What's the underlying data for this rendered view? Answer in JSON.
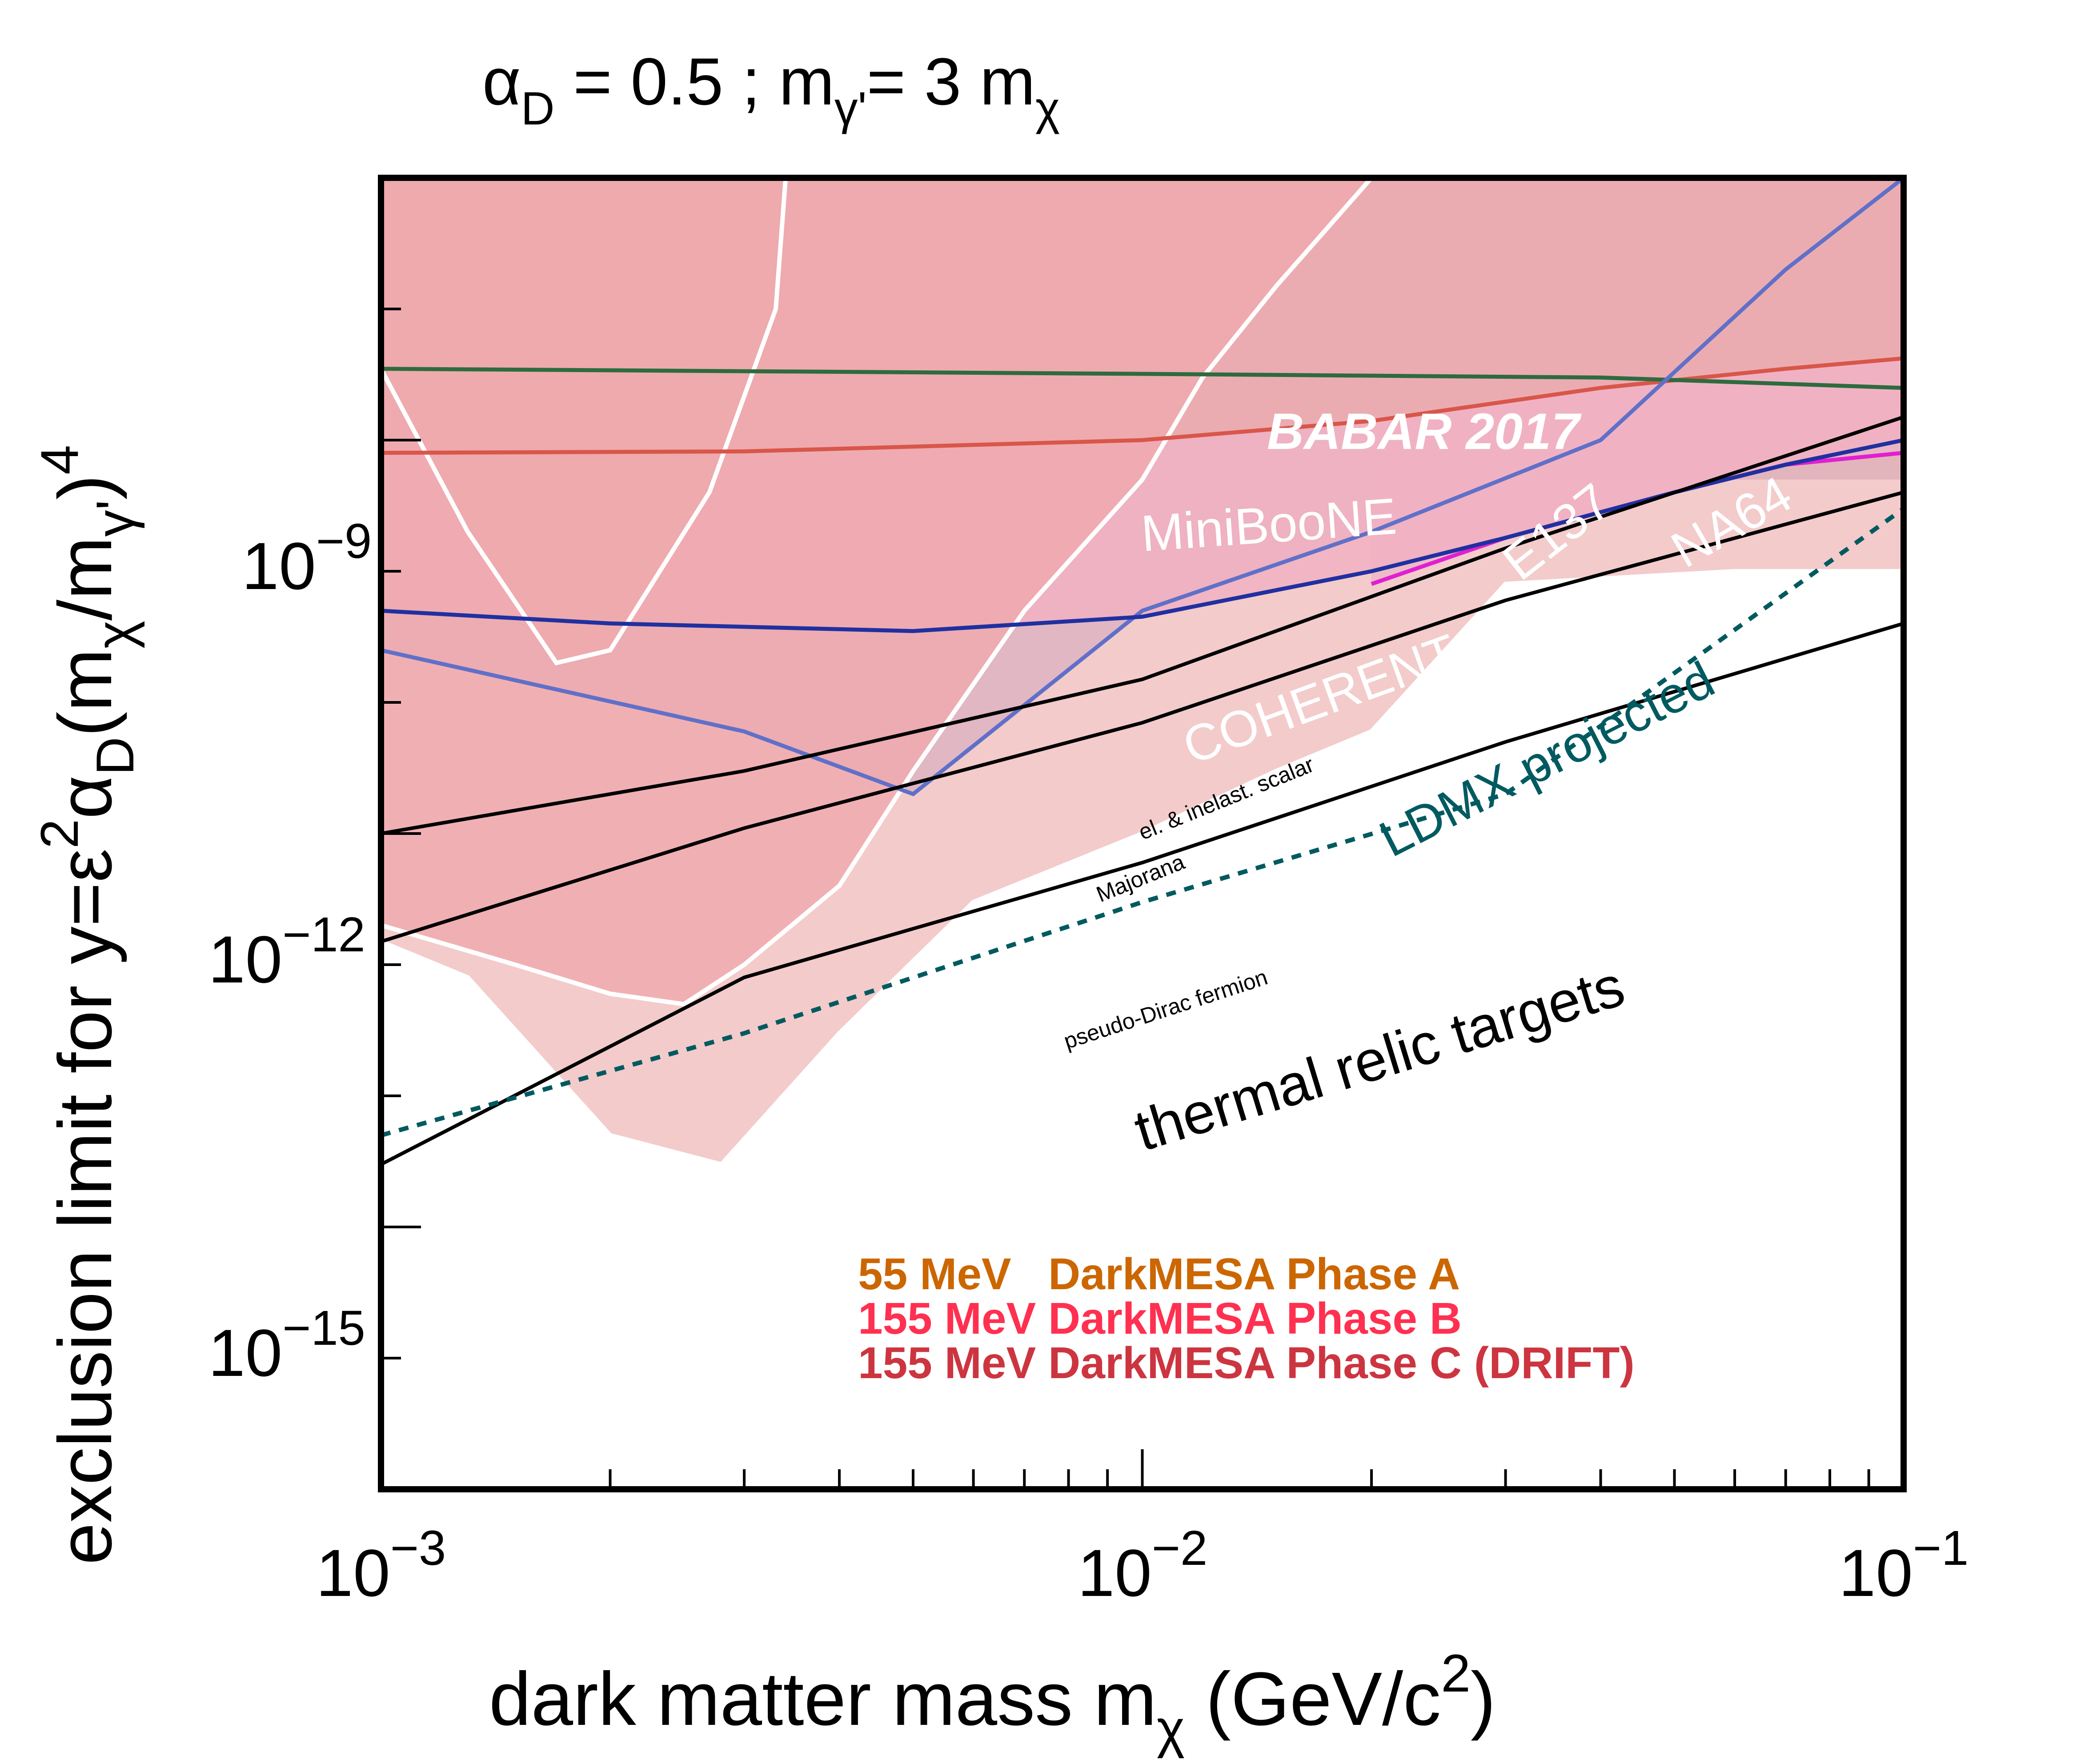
{
  "chart_data": {
    "type": "area",
    "title": {
      "alpha": "α",
      "alpha_sub": "D",
      "part1": " = 0.5 ; m",
      "m_sub": "γ'",
      "part2": "= 3 m",
      "chi_sub": "χ"
    },
    "xlabel": {
      "text": "dark matter mass m",
      "sub": "χ",
      "unit": " (GeV/c",
      "unit_sup": "2",
      "close": ")"
    },
    "ylabel": {
      "text": "exclusion limit for y=ε",
      "sup1": "2",
      "alpha": "α",
      "sub1": "D",
      "mid": "(m",
      "sub2": "χ",
      "slash": "/m",
      "sub3": "γ'",
      "close": ")",
      "sup2": "4"
    },
    "x_scale": "log",
    "y_scale": "log",
    "xlim": [
      0.001,
      0.1
    ],
    "ylim": [
      1e-17,
      1e-07
    ],
    "x_ticks": [
      {
        "value": 0.001,
        "base": "10",
        "exp": "−3"
      },
      {
        "value": 0.01,
        "base": "10",
        "exp": "−2"
      },
      {
        "value": 0.1,
        "base": "10",
        "exp": "−1"
      }
    ],
    "y_ticks": [
      {
        "value": 1e-09,
        "base": "10",
        "exp": "−9"
      },
      {
        "value": 1e-12,
        "base": "10",
        "exp": "−12"
      },
      {
        "value": 1e-15,
        "base": "10",
        "exp": "−15"
      }
    ],
    "regions": [
      {
        "name": "BaBar 2017",
        "color": "#8C6E96",
        "top": 1e-07,
        "points": [
          [
            0.033,
            1e-07
          ],
          [
            0.1,
            1e-07
          ],
          [
            0.1,
            5e-10
          ],
          [
            0.033,
            5e-10
          ]
        ]
      },
      {
        "name": "E137",
        "color": "#7D78C8",
        "top": 1e-07,
        "points": [
          [
            0.001,
            2.5e-11
          ],
          [
            0.003,
            6e-12
          ],
          [
            0.005,
            2e-12
          ],
          [
            0.01,
            5e-11
          ],
          [
            0.02,
            2e-10
          ],
          [
            0.04,
            1e-09
          ],
          [
            0.07,
            2e-08
          ],
          [
            0.1,
            1e-07
          ]
        ]
      },
      {
        "name": "NA64",
        "color": "#D28CE6",
        "top": 1e-07,
        "points": [
          [
            0.02,
            8e-11
          ],
          [
            0.03,
            1.8e-10
          ],
          [
            0.05,
            4e-10
          ],
          [
            0.07,
            6.5e-10
          ],
          [
            0.1,
            8e-10
          ]
        ]
      },
      {
        "name": "COHERENT CsI",
        "color": "#F46ECC",
        "top": 1e-07,
        "points": [
          [
            0.001,
            5e-11
          ],
          [
            0.002,
            4e-11
          ],
          [
            0.005,
            3.5e-11
          ],
          [
            0.01,
            4.5e-11
          ],
          [
            0.02,
            1e-10
          ],
          [
            0.03,
            1.8e-10
          ],
          [
            0.05,
            4e-10
          ],
          [
            0.07,
            6.5e-10
          ],
          [
            0.1,
            1e-09
          ]
        ]
      },
      {
        "name": "MiniBooNE",
        "color": "#CD4C5C",
        "top": 1e-07,
        "points": [
          [
            0.001,
            8e-10
          ],
          [
            0.003,
            8.2e-10
          ],
          [
            0.01,
            1e-09
          ],
          [
            0.02,
            1.4e-09
          ],
          [
            0.04,
            2.5e-09
          ],
          [
            0.07,
            3.5e-09
          ],
          [
            0.1,
            4.2e-09
          ]
        ]
      },
      {
        "name": "DarkMESA Phase A",
        "color": "#C4503C",
        "top": 1e-07,
        "points": [
          [
            0.001,
            1e-07
          ],
          [
            0.001,
            3.5e-09
          ],
          [
            0.0013,
            2e-10
          ],
          [
            0.0017,
            2e-11
          ],
          [
            0.002,
            2.5e-11
          ],
          [
            0.0027,
            4e-10
          ],
          [
            0.0033,
            1e-08
          ],
          [
            0.0034,
            1e-07
          ]
        ]
      },
      {
        "name": "DarkMESA Phase B",
        "color": "#E8485E",
        "top": 1e-07,
        "points": [
          [
            0.001,
            2e-13
          ],
          [
            0.0015,
            1e-13
          ],
          [
            0.002,
            6e-14
          ],
          [
            0.0025,
            5e-14
          ],
          [
            0.003,
            1e-13
          ],
          [
            0.004,
            4e-13
          ],
          [
            0.005,
            3e-12
          ],
          [
            0.007,
            5e-11
          ],
          [
            0.01,
            5e-10
          ],
          [
            0.012,
            3e-09
          ],
          [
            0.015,
            1.5e-08
          ],
          [
            0.02,
            1e-07
          ]
        ]
      },
      {
        "name": "DarkMESA Phase C (DRIFT)",
        "color": "#F0C0C0",
        "top": 1e-07,
        "points": [
          [
            0.001,
            1.5e-13
          ],
          [
            0.0013,
            8e-14
          ],
          [
            0.002,
            5e-15
          ],
          [
            0.0028,
            3e-15
          ],
          [
            0.004,
            3e-14
          ],
          [
            0.006,
            3e-13
          ],
          [
            0.01,
            1e-12
          ],
          [
            0.015,
            3e-12
          ],
          [
            0.02,
            6e-12
          ],
          [
            0.03,
            8e-11
          ],
          [
            0.06,
            1e-10
          ],
          [
            0.1,
            1e-10
          ]
        ]
      }
    ],
    "boundary_lines": [
      {
        "name": "MiniBooNE",
        "color": "#D9564A",
        "points": [
          [
            0.001,
            8e-10
          ],
          [
            0.003,
            8.2e-10
          ],
          [
            0.01,
            1e-09
          ],
          [
            0.02,
            1.4e-09
          ],
          [
            0.04,
            2.5e-09
          ],
          [
            0.07,
            3.5e-09
          ],
          [
            0.1,
            4.2e-09
          ]
        ]
      },
      {
        "name": "BaBar 2017",
        "color": "#2E6B3E",
        "points": [
          [
            0.001,
            3.5e-09
          ],
          [
            0.01,
            3.2e-09
          ],
          [
            0.04,
            3e-09
          ],
          [
            0.1,
            2.5e-09
          ]
        ]
      },
      {
        "name": "E137",
        "color": "#6070C8",
        "points": [
          [
            0.001,
            2.5e-11
          ],
          [
            0.003,
            6e-12
          ],
          [
            0.005,
            2e-12
          ],
          [
            0.01,
            5e-11
          ],
          [
            0.02,
            2e-10
          ],
          [
            0.04,
            1e-09
          ],
          [
            0.07,
            2e-08
          ],
          [
            0.1,
            1e-07
          ]
        ]
      },
      {
        "name": "NA64",
        "color": "#E020D0",
        "points": [
          [
            0.02,
            8e-11
          ],
          [
            0.03,
            1.8e-10
          ],
          [
            0.05,
            4e-10
          ],
          [
            0.07,
            6.5e-10
          ],
          [
            0.1,
            8e-10
          ]
        ]
      },
      {
        "name": "COHERENT CsI",
        "color": "#2030A0",
        "points": [
          [
            0.001,
            5e-11
          ],
          [
            0.002,
            4e-11
          ],
          [
            0.005,
            3.5e-11
          ],
          [
            0.01,
            4.5e-11
          ],
          [
            0.02,
            1e-10
          ],
          [
            0.03,
            1.8e-10
          ],
          [
            0.05,
            4e-10
          ],
          [
            0.07,
            6.5e-10
          ],
          [
            0.1,
            1e-09
          ]
        ]
      }
    ],
    "thermal_targets": [
      {
        "name": "el. & inelast. scalar",
        "color": "#000000",
        "points": [
          [
            0.001,
            1e-12
          ],
          [
            0.003,
            3e-12
          ],
          [
            0.01,
            1.5e-11
          ],
          [
            0.03,
            1.5e-10
          ],
          [
            0.1,
            1.5e-09
          ]
        ]
      },
      {
        "name": "Majorana",
        "color": "#000000",
        "points": [
          [
            0.001,
            1.5e-13
          ],
          [
            0.003,
            1.1e-12
          ],
          [
            0.01,
            7e-12
          ],
          [
            0.03,
            6e-11
          ],
          [
            0.1,
            4e-10
          ]
        ]
      },
      {
        "name": "pseudo-Dirac fermion",
        "color": "#000000",
        "points": [
          [
            0.001,
            3e-15
          ],
          [
            0.003,
            8e-14
          ],
          [
            0.01,
            6e-13
          ],
          [
            0.03,
            5e-12
          ],
          [
            0.1,
            4e-11
          ]
        ]
      }
    ],
    "projections": [
      {
        "name": "LDMX projected",
        "color": "#005A60",
        "dashed": true,
        "points": [
          [
            0.001,
            5e-15
          ],
          [
            0.003,
            3e-14
          ],
          [
            0.01,
            3e-13
          ],
          [
            0.03,
            2e-12
          ],
          [
            0.1,
            3e-10
          ]
        ]
      }
    ],
    "annotations": [
      {
        "text": "BABAR 2017",
        "color": "#FFFFFF"
      },
      {
        "text": "MiniBooNE",
        "color": "#FFFFFF"
      },
      {
        "text": "E137",
        "color": "#FFFFFF"
      },
      {
        "text": "NA64",
        "color": "#FFFFFF"
      },
      {
        "text": "COHERENT CsI",
        "color": "#FFFFFF"
      },
      {
        "text": "el. & inelast. scalar",
        "color": "#000000"
      },
      {
        "text": "Majorana",
        "color": "#000000"
      },
      {
        "text": "pseudo-Dirac fermion",
        "color": "#000000"
      },
      {
        "text": "LDMX projected",
        "color": "#005A60"
      },
      {
        "text": "thermal relic targets",
        "color": "#000000"
      }
    ],
    "legend": {
      "placement": "bottom-right",
      "entries": [
        {
          "text": "55 MeV   DarkMESA Phase A",
          "color": "#CC6600"
        },
        {
          "text": "155 MeV DarkMESA Phase B",
          "color": "#FF3050"
        },
        {
          "text": "155 MeV DarkMESA Phase C (DRIFT)",
          "color": "#CC3540"
        }
      ]
    }
  }
}
